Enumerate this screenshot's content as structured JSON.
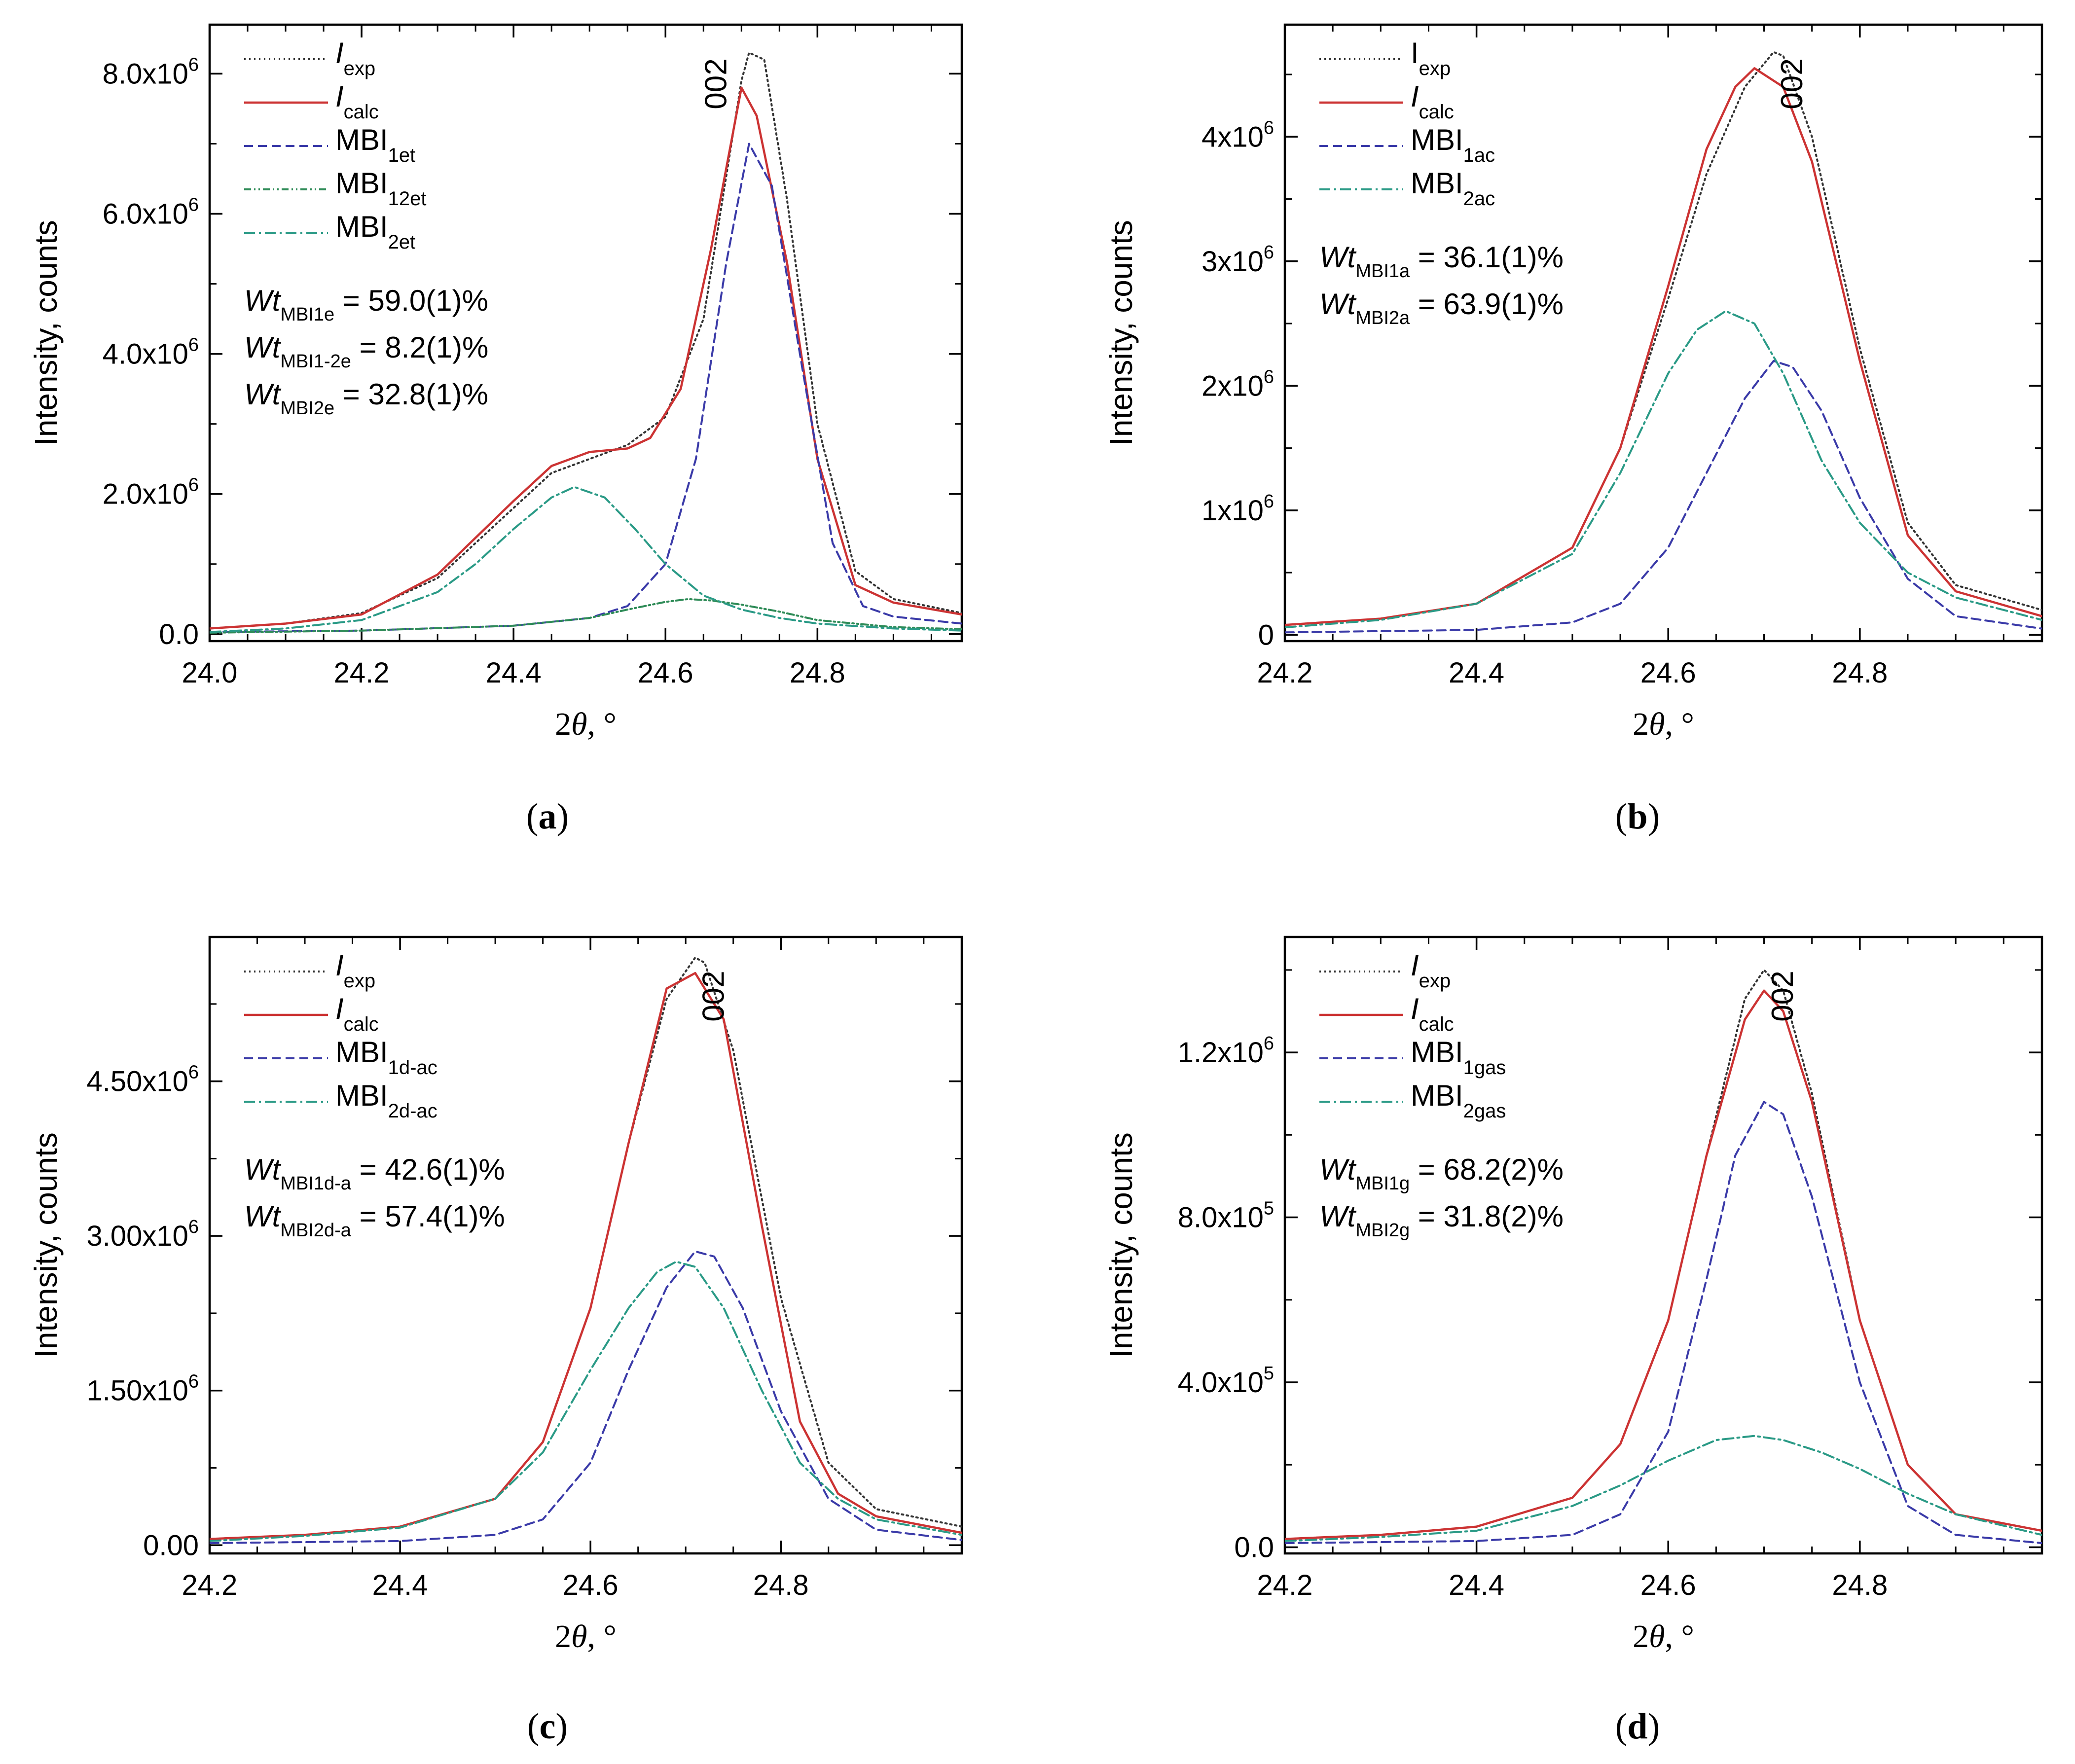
{
  "chart_data": [
    {
      "id": "a",
      "type": "line",
      "panel_label": "a",
      "xlabel_prefix": "2",
      "xlabel_theta": "θ",
      "xlabel_unit": ", °",
      "ylabel": "Intensity, counts",
      "xlim": [
        24.0,
        24.99
      ],
      "ylim": [
        -100000,
        8700000
      ],
      "xticks": [
        {
          "v": 24.0,
          "l": "24.0"
        },
        {
          "v": 24.2,
          "l": "24.2"
        },
        {
          "v": 24.4,
          "l": "24.4"
        },
        {
          "v": 24.6,
          "l": "24.6"
        },
        {
          "v": 24.8,
          "l": "24.8"
        }
      ],
      "yticks": [
        {
          "v": 0,
          "m": "0.0",
          "e": ""
        },
        {
          "v": 2000000,
          "m": "2.0x10",
          "e": "6"
        },
        {
          "v": 4000000,
          "m": "4.0x10",
          "e": "6"
        },
        {
          "v": 6000000,
          "m": "6.0x10",
          "e": "6"
        },
        {
          "v": 8000000,
          "m": "8.0x10",
          "e": "6"
        }
      ],
      "peak_label": "002",
      "peak_x": 24.68,
      "legend": [
        {
          "base": "I",
          "sub": "exp",
          "italic": true,
          "style": "exp"
        },
        {
          "base": "I",
          "sub": "calc",
          "italic": true,
          "style": "calc"
        },
        {
          "base": "MBI",
          "sub": "1et",
          "italic": false,
          "style": "c1"
        },
        {
          "base": "MBI",
          "sub": "12et",
          "italic": false,
          "style": "c12"
        },
        {
          "base": "MBI",
          "sub": "2et",
          "italic": false,
          "style": "c2"
        }
      ],
      "annotations": [
        {
          "w": "Wt",
          "sub": "MBI1e",
          "val": " = 59.0(1)%"
        },
        {
          "w": "Wt",
          "sub": "MBI1-2e",
          "val": " = 8.2(1)%"
        },
        {
          "w": "Wt",
          "sub": "MBI2e",
          "val": " = 32.8(1)%"
        }
      ],
      "series": [
        {
          "name": "I_exp",
          "style": "exp",
          "x": [
            24.0,
            24.1,
            24.2,
            24.3,
            24.4,
            24.45,
            24.5,
            24.55,
            24.6,
            24.65,
            24.7,
            24.71,
            24.73,
            24.76,
            24.8,
            24.85,
            24.9,
            24.99
          ],
          "y": [
            80000,
            150000,
            300000,
            800000,
            1800000,
            2300000,
            2500000,
            2700000,
            3100000,
            4500000,
            7900000,
            8300000,
            8200000,
            6200000,
            3000000,
            900000,
            500000,
            300000
          ]
        },
        {
          "name": "I_calc",
          "style": "calc",
          "x": [
            24.0,
            24.1,
            24.2,
            24.3,
            24.4,
            24.45,
            24.5,
            24.55,
            24.58,
            24.62,
            24.66,
            24.7,
            24.72,
            24.76,
            24.8,
            24.85,
            24.9,
            24.99
          ],
          "y": [
            80000,
            150000,
            280000,
            850000,
            1900000,
            2400000,
            2600000,
            2650000,
            2800000,
            3500000,
            5500000,
            7800000,
            7400000,
            5300000,
            2500000,
            700000,
            450000,
            280000
          ]
        },
        {
          "name": "MBI_1et",
          "style": "c1",
          "x": [
            24.0,
            24.2,
            24.4,
            24.5,
            24.55,
            24.6,
            24.64,
            24.68,
            24.71,
            24.74,
            24.78,
            24.82,
            24.86,
            24.9,
            24.99
          ],
          "y": [
            30000,
            50000,
            120000,
            230000,
            400000,
            1000000,
            2500000,
            5300000,
            7000000,
            6400000,
            3800000,
            1300000,
            400000,
            250000,
            150000
          ]
        },
        {
          "name": "MBI_12et",
          "style": "c12",
          "x": [
            24.0,
            24.2,
            24.4,
            24.5,
            24.55,
            24.6,
            24.63,
            24.66,
            24.7,
            24.75,
            24.8,
            24.9,
            24.99
          ],
          "y": [
            20000,
            50000,
            120000,
            230000,
            350000,
            460000,
            500000,
            480000,
            420000,
            320000,
            200000,
            100000,
            70000
          ]
        },
        {
          "name": "MBI_2et",
          "style": "c2",
          "x": [
            24.0,
            24.1,
            24.2,
            24.3,
            24.35,
            24.4,
            24.45,
            24.48,
            24.52,
            24.56,
            24.6,
            24.65,
            24.7,
            24.75,
            24.8,
            24.9,
            24.99
          ],
          "y": [
            30000,
            80000,
            200000,
            600000,
            1000000,
            1500000,
            1950000,
            2100000,
            1950000,
            1500000,
            1000000,
            550000,
            350000,
            230000,
            150000,
            80000,
            50000
          ]
        }
      ]
    },
    {
      "id": "b",
      "type": "line",
      "panel_label": "b",
      "xlabel_prefix": "2",
      "xlabel_theta": "θ",
      "xlabel_unit": ", °",
      "ylabel": "Intensity, counts",
      "xlim": [
        24.2,
        24.99
      ],
      "ylim": [
        -50000,
        4900000
      ],
      "xticks": [
        {
          "v": 24.2,
          "l": "24.2"
        },
        {
          "v": 24.4,
          "l": "24.4"
        },
        {
          "v": 24.6,
          "l": "24.6"
        },
        {
          "v": 24.8,
          "l": "24.8"
        }
      ],
      "yticks": [
        {
          "v": 0,
          "m": "0",
          "e": ""
        },
        {
          "v": 1000000,
          "m": "1x10",
          "e": "6"
        },
        {
          "v": 2000000,
          "m": "2x10",
          "e": "6"
        },
        {
          "v": 3000000,
          "m": "3x10",
          "e": "6"
        },
        {
          "v": 4000000,
          "m": "4x10",
          "e": "6"
        }
      ],
      "peak_label": "002",
      "peak_x": 24.74,
      "legend": [
        {
          "base": "I",
          "sub": "exp",
          "italic": false,
          "style": "exp"
        },
        {
          "base": "I",
          "sub": "calc",
          "italic": true,
          "style": "calc"
        },
        {
          "base": "MBI",
          "sub": "1ac",
          "italic": false,
          "style": "c1"
        },
        {
          "base": "MBI",
          "sub": "2ac",
          "italic": false,
          "style": "c2"
        }
      ],
      "annotations": [
        {
          "w": "Wt",
          "sub": "MBI1a",
          "val": " = 36.1(1)%"
        },
        {
          "w": "Wt",
          "sub": "MBI2a",
          "val": " = 63.9(1)%"
        }
      ],
      "series": [
        {
          "name": "I_exp",
          "style": "exp",
          "x": [
            24.2,
            24.3,
            24.4,
            24.5,
            24.55,
            24.6,
            24.64,
            24.68,
            24.71,
            24.72,
            24.75,
            24.8,
            24.85,
            24.9,
            24.99
          ],
          "y": [
            80000,
            130000,
            250000,
            700000,
            1500000,
            2700000,
            3700000,
            4400000,
            4680000,
            4650000,
            4000000,
            2300000,
            900000,
            400000,
            200000
          ]
        },
        {
          "name": "I_calc",
          "style": "calc",
          "x": [
            24.2,
            24.3,
            24.4,
            24.5,
            24.55,
            24.6,
            24.64,
            24.67,
            24.69,
            24.72,
            24.75,
            24.8,
            24.85,
            24.9,
            24.99
          ],
          "y": [
            80000,
            130000,
            250000,
            700000,
            1500000,
            2800000,
            3900000,
            4400000,
            4550000,
            4400000,
            3800000,
            2200000,
            800000,
            350000,
            150000
          ]
        },
        {
          "name": "MBI_1ac",
          "style": "c1",
          "x": [
            24.2,
            24.4,
            24.5,
            24.55,
            24.6,
            24.64,
            24.68,
            24.71,
            24.73,
            24.76,
            24.8,
            24.85,
            24.9,
            24.99
          ],
          "y": [
            20000,
            40000,
            100000,
            250000,
            700000,
            1300000,
            1900000,
            2200000,
            2150000,
            1800000,
            1100000,
            450000,
            150000,
            50000
          ]
        },
        {
          "name": "MBI_2ac",
          "style": "c2",
          "x": [
            24.2,
            24.3,
            24.4,
            24.5,
            24.55,
            24.6,
            24.63,
            24.66,
            24.69,
            24.72,
            24.76,
            24.8,
            24.85,
            24.9,
            24.99
          ],
          "y": [
            60000,
            120000,
            250000,
            650000,
            1300000,
            2100000,
            2450000,
            2600000,
            2500000,
            2100000,
            1400000,
            900000,
            500000,
            300000,
            120000
          ]
        }
      ]
    },
    {
      "id": "c",
      "type": "line",
      "panel_label": "c",
      "xlabel_prefix": "2",
      "xlabel_theta": "θ",
      "xlabel_unit": ", °",
      "ylabel": "Intensity, counts",
      "xlim": [
        24.2,
        24.99
      ],
      "ylim": [
        -80000,
        5900000
      ],
      "xticks": [
        {
          "v": 24.2,
          "l": "24.2"
        },
        {
          "v": 24.4,
          "l": "24.4"
        },
        {
          "v": 24.6,
          "l": "24.6"
        },
        {
          "v": 24.8,
          "l": "24.8"
        }
      ],
      "yticks": [
        {
          "v": 0,
          "m": "0.00",
          "e": ""
        },
        {
          "v": 1500000,
          "m": "1.50x10",
          "e": "6"
        },
        {
          "v": 3000000,
          "m": "3.00x10",
          "e": "6"
        },
        {
          "v": 4500000,
          "m": "4.50x10",
          "e": "6"
        }
      ],
      "peak_label": "002",
      "peak_x": 24.74,
      "legend": [
        {
          "base": "I",
          "sub": "exp",
          "italic": true,
          "style": "exp"
        },
        {
          "base": "I",
          "sub": "calc",
          "italic": true,
          "style": "calc"
        },
        {
          "base": "MBI",
          "sub": "1d-ac",
          "italic": false,
          "style": "c1"
        },
        {
          "base": "MBI",
          "sub": "2d-ac",
          "italic": false,
          "style": "c2"
        }
      ],
      "annotations": [
        {
          "w": "Wt",
          "sub": "MBI1d-a",
          "val": " = 42.6(1)%"
        },
        {
          "w": "Wt",
          "sub": "MBI2d-a",
          "val": " = 57.4(1)%"
        }
      ],
      "series": [
        {
          "name": "I_exp",
          "style": "exp",
          "x": [
            24.2,
            24.3,
            24.4,
            24.5,
            24.55,
            24.6,
            24.64,
            24.68,
            24.71,
            24.72,
            24.75,
            24.8,
            24.85,
            24.9,
            24.99
          ],
          "y": [
            60000,
            100000,
            180000,
            450000,
            1000000,
            2300000,
            3900000,
            5300000,
            5700000,
            5650000,
            4800000,
            2400000,
            800000,
            350000,
            180000
          ]
        },
        {
          "name": "I_calc",
          "style": "calc",
          "x": [
            24.2,
            24.3,
            24.4,
            24.5,
            24.55,
            24.6,
            24.64,
            24.68,
            24.71,
            24.74,
            24.78,
            24.82,
            24.86,
            24.9,
            24.99
          ],
          "y": [
            60000,
            100000,
            180000,
            450000,
            1000000,
            2300000,
            3900000,
            5400000,
            5550000,
            5100000,
            3100000,
            1200000,
            500000,
            280000,
            120000
          ]
        },
        {
          "name": "MBI_1d-ac",
          "style": "c1",
          "x": [
            24.2,
            24.4,
            24.5,
            24.55,
            24.6,
            24.64,
            24.68,
            24.71,
            24.73,
            24.76,
            24.8,
            24.85,
            24.9,
            24.99
          ],
          "y": [
            20000,
            40000,
            100000,
            250000,
            800000,
            1700000,
            2500000,
            2850000,
            2800000,
            2300000,
            1300000,
            450000,
            150000,
            50000
          ]
        },
        {
          "name": "MBI_2d-ac",
          "style": "c2",
          "x": [
            24.2,
            24.3,
            24.4,
            24.5,
            24.55,
            24.6,
            24.64,
            24.67,
            24.69,
            24.71,
            24.74,
            24.78,
            24.82,
            24.86,
            24.9,
            24.99
          ],
          "y": [
            40000,
            90000,
            170000,
            450000,
            900000,
            1700000,
            2300000,
            2650000,
            2750000,
            2700000,
            2300000,
            1500000,
            800000,
            450000,
            250000,
            100000
          ]
        }
      ]
    },
    {
      "id": "d",
      "type": "line",
      "panel_label": "d",
      "xlabel_prefix": "2",
      "xlabel_theta": "θ",
      "xlabel_unit": ", °",
      "ylabel": "Intensity, counts",
      "xlim": [
        24.2,
        24.99
      ],
      "ylim": [
        -15000,
        1480000
      ],
      "xticks": [
        {
          "v": 24.2,
          "l": "24.2"
        },
        {
          "v": 24.4,
          "l": "24.4"
        },
        {
          "v": 24.6,
          "l": "24.6"
        },
        {
          "v": 24.8,
          "l": "24.8"
        }
      ],
      "yticks": [
        {
          "v": 0,
          "m": "0.0",
          "e": ""
        },
        {
          "v": 400000,
          "m": "4.0x10",
          "e": "5"
        },
        {
          "v": 800000,
          "m": "8.0x10",
          "e": "5"
        },
        {
          "v": 1200000,
          "m": "1.2x10",
          "e": "6"
        }
      ],
      "peak_label": "002",
      "peak_x": 24.73,
      "legend": [
        {
          "base": "I",
          "sub": "exp",
          "italic": true,
          "style": "exp"
        },
        {
          "base": "I",
          "sub": "calc",
          "italic": true,
          "style": "calc"
        },
        {
          "base": "MBI",
          "sub": "1gas",
          "italic": false,
          "style": "c1"
        },
        {
          "base": "MBI",
          "sub": "2gas",
          "italic": false,
          "style": "c2"
        }
      ],
      "annotations": [
        {
          "w": "Wt",
          "sub": "MBI1g",
          "val": " = 68.2(2)%"
        },
        {
          "w": "Wt",
          "sub": "MBI2g",
          "val": " = 31.8(2)%"
        }
      ],
      "series": [
        {
          "name": "I_exp",
          "style": "exp",
          "x": [
            24.2,
            24.3,
            24.4,
            24.5,
            24.55,
            24.6,
            24.64,
            24.68,
            24.7,
            24.72,
            24.75,
            24.8,
            24.85,
            24.9,
            24.99
          ],
          "y": [
            20000,
            30000,
            50000,
            120000,
            250000,
            550000,
            950000,
            1330000,
            1400000,
            1350000,
            1100000,
            550000,
            200000,
            80000,
            40000
          ]
        },
        {
          "name": "I_calc",
          "style": "calc",
          "x": [
            24.2,
            24.3,
            24.4,
            24.5,
            24.55,
            24.6,
            24.64,
            24.68,
            24.7,
            24.72,
            24.75,
            24.8,
            24.85,
            24.9,
            24.99
          ],
          "y": [
            20000,
            30000,
            50000,
            120000,
            250000,
            550000,
            950000,
            1280000,
            1350000,
            1300000,
            1080000,
            550000,
            200000,
            80000,
            40000
          ]
        },
        {
          "name": "MBI_1gas",
          "style": "c1",
          "x": [
            24.2,
            24.4,
            24.5,
            24.55,
            24.6,
            24.64,
            24.67,
            24.7,
            24.72,
            24.75,
            24.8,
            24.85,
            24.9,
            24.99
          ],
          "y": [
            10000,
            15000,
            30000,
            80000,
            280000,
            650000,
            950000,
            1080000,
            1050000,
            850000,
            400000,
            100000,
            30000,
            10000
          ]
        },
        {
          "name": "MBI_2gas",
          "style": "c2",
          "x": [
            24.2,
            24.3,
            24.4,
            24.5,
            24.55,
            24.6,
            24.65,
            24.69,
            24.72,
            24.76,
            24.8,
            24.85,
            24.9,
            24.99
          ],
          "y": [
            15000,
            25000,
            40000,
            100000,
            150000,
            210000,
            260000,
            270000,
            260000,
            230000,
            190000,
            130000,
            80000,
            30000
          ]
        }
      ]
    }
  ]
}
